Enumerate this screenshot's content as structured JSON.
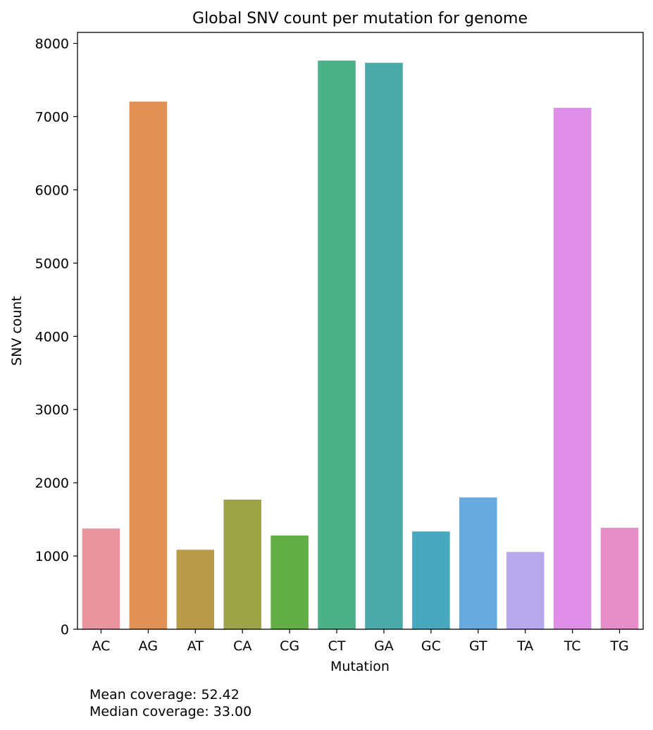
{
  "chart_data": {
    "type": "bar",
    "title": "Global SNV count per mutation for genome",
    "xlabel": "Mutation",
    "ylabel": "SNV count",
    "categories": [
      "AC",
      "AG",
      "AT",
      "CA",
      "CG",
      "CT",
      "GA",
      "GC",
      "GT",
      "TA",
      "TC",
      "TG"
    ],
    "values": [
      1375,
      7205,
      1085,
      1770,
      1280,
      7765,
      7735,
      1335,
      1800,
      1055,
      7120,
      1385
    ],
    "colors": [
      "#e9949e",
      "#e09153",
      "#b89b48",
      "#9ba547",
      "#63ae47",
      "#4bb088",
      "#4aaaaa",
      "#48a8bd",
      "#66aade",
      "#b7a7ec",
      "#df8ee8",
      "#e68ec5"
    ],
    "ylim": [
      0,
      8150
    ],
    "yticks": [
      0,
      1000,
      2000,
      3000,
      4000,
      5000,
      6000,
      7000,
      8000
    ],
    "grid": false,
    "legend": "none"
  },
  "footnotes": {
    "mean": "Mean coverage: 52.42",
    "median": "Median coverage: 33.00"
  }
}
